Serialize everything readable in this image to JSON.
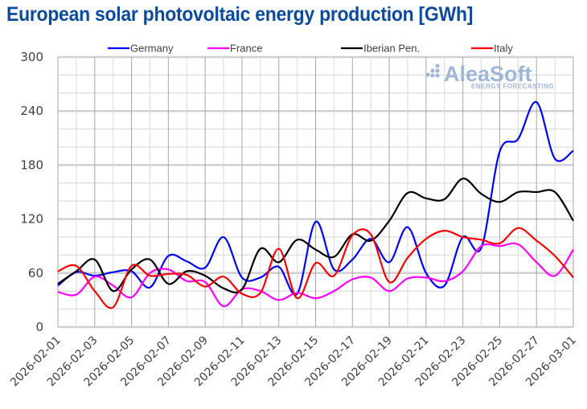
{
  "chart_data": {
    "type": "line",
    "title": "European solar photovoltaic energy production [GWh]",
    "xlabel": "",
    "ylabel": "",
    "ylim": [
      0,
      300
    ],
    "yticks": [
      0,
      60,
      120,
      180,
      240,
      300
    ],
    "grid": true,
    "legend": "top",
    "x": [
      "2026-02-01",
      "2026-02-02",
      "2026-02-03",
      "2026-02-04",
      "2026-02-05",
      "2026-02-06",
      "2026-02-07",
      "2026-02-08",
      "2026-02-09",
      "2026-02-10",
      "2026-02-11",
      "2026-02-12",
      "2026-02-13",
      "2026-02-14",
      "2026-02-15",
      "2026-02-16",
      "2026-02-17",
      "2026-02-18",
      "2026-02-19",
      "2026-02-20",
      "2026-02-21",
      "2026-02-22",
      "2026-02-23",
      "2026-02-24",
      "2026-02-25",
      "2026-02-26",
      "2026-02-27",
      "2026-02-28",
      "2026-03-01"
    ],
    "xtick_labels": [
      "2026-02-01",
      "2026-02-03",
      "2026-02-05",
      "2026-02-07",
      "2026-02-09",
      "2026-02-11",
      "2026-02-13",
      "2026-02-15",
      "2026-02-17",
      "2026-02-19",
      "2026-02-21",
      "2026-02-23",
      "2026-02-25",
      "2026-02-27",
      "2026-03-01"
    ],
    "series": [
      {
        "name": "Germany",
        "color": "#0000ff",
        "values": [
          46,
          61,
          57,
          61,
          62,
          44,
          79,
          73,
          66,
          100,
          55,
          55,
          67,
          37,
          117,
          64,
          75,
          98,
          72,
          111,
          60,
          46,
          100,
          88,
          195,
          209,
          250,
          187,
          196
        ]
      },
      {
        "name": "France",
        "color": "#ff00ff",
        "values": [
          39,
          36,
          56,
          46,
          33,
          60,
          64,
          51,
          50,
          23,
          42,
          40,
          30,
          38,
          32,
          40,
          53,
          55,
          40,
          54,
          55,
          51,
          62,
          90,
          90,
          92,
          72,
          57,
          86
        ]
      },
      {
        "name": "Iberian Pen.",
        "color": "#000000",
        "values": [
          48,
          62,
          75,
          40,
          64,
          75,
          48,
          62,
          57,
          43,
          42,
          87,
          72,
          97,
          86,
          78,
          103,
          96,
          118,
          149,
          143,
          142,
          165,
          148,
          139,
          150,
          150,
          150,
          118
        ]
      },
      {
        "name": "Italy",
        "color": "#ff0000",
        "values": [
          62,
          68,
          40,
          22,
          68,
          57,
          59,
          58,
          45,
          56,
          37,
          38,
          87,
          32,
          71,
          57,
          102,
          103,
          50,
          77,
          98,
          107,
          100,
          97,
          93,
          110,
          96,
          79,
          55
        ]
      }
    ]
  },
  "logo": {
    "name": "AleaSoft",
    "tagline": "ENERGY FORECASTING"
  }
}
